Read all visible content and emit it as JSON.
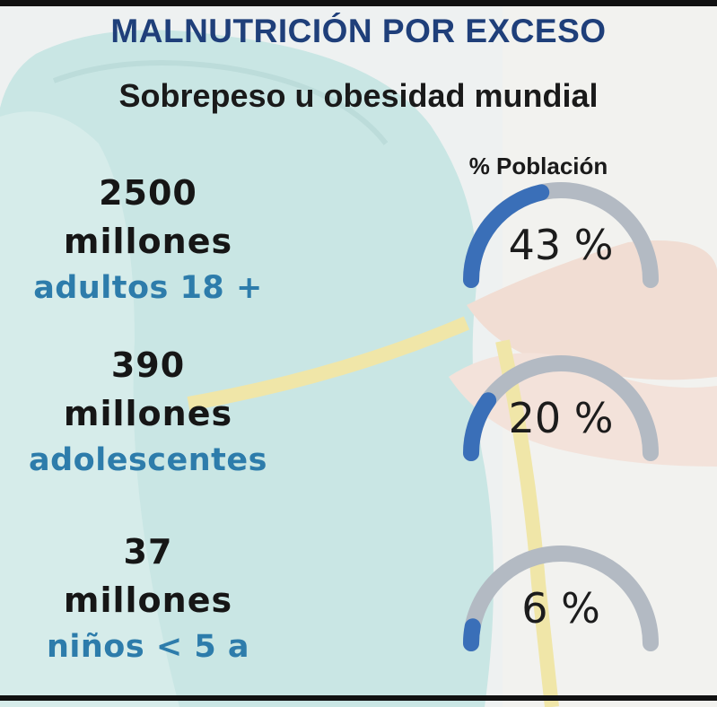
{
  "title": "MALNUTRICIÓN POR EXCESO",
  "subtitle": "Sobrepeso u obesidad mundial",
  "column_header": "% Población",
  "stats": [
    {
      "number": "2500",
      "unit": "millones",
      "group": "adultos 18 +",
      "percent_label": "43 %",
      "percent": 43
    },
    {
      "number": "390",
      "unit": "millones",
      "group": "adolescentes",
      "percent_label": "20 %",
      "percent": 20
    },
    {
      "number": "37",
      "unit": "millones",
      "group": "niños < 5 a",
      "percent_label": "6 %",
      "percent": 6
    }
  ],
  "colors": {
    "title": "#1f3f7a",
    "group_text": "#2d7cab",
    "gauge_fill": "#3a6fb8",
    "gauge_track": "#b3bac3"
  }
}
